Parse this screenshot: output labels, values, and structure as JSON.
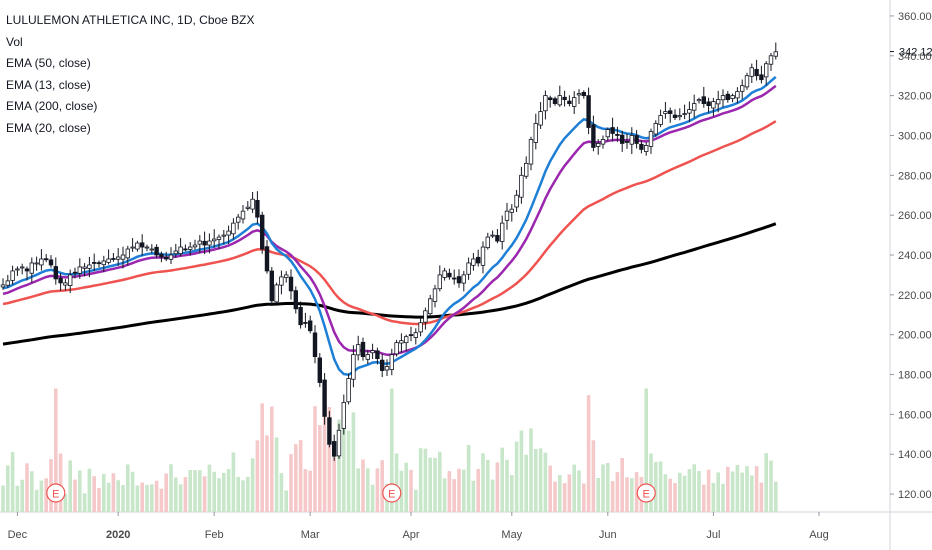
{
  "legend": {
    "title": "LULULEMON ATHLETICA INC, 1D, Cboe BZX",
    "vol": "Vol",
    "ema50": "EMA (50, close)",
    "ema13": "EMA (13, close)",
    "ema200": "EMA (200, close)",
    "ema20": "EMA (20, close)"
  },
  "chart_data": {
    "type": "candlestick",
    "y_ticks": [
      "360.00",
      "340.00",
      "320.00",
      "300.00",
      "280.00",
      "260.00",
      "240.00",
      "220.00",
      "200.00",
      "180.00",
      "160.00",
      "140.00",
      "120.00"
    ],
    "y_tick_values": [
      360,
      340,
      320,
      300,
      280,
      260,
      240,
      220,
      200,
      180,
      160,
      140,
      120
    ],
    "ylim": [
      111,
      368
    ],
    "last_price": "342.12",
    "last_price_value": 342.12,
    "x_labels": [
      {
        "label": "Dec",
        "bar": 3
      },
      {
        "label": "2020",
        "bar": 24
      },
      {
        "label": "Feb",
        "bar": 44
      },
      {
        "label": "Mar",
        "bar": 64
      },
      {
        "label": "Apr",
        "bar": 85
      },
      {
        "label": "May",
        "bar": 106
      },
      {
        "label": "Jun",
        "bar": 126
      },
      {
        "label": "Jul",
        "bar": 148
      },
      {
        "label": "Aug",
        "bar": 170
      }
    ],
    "earnings_marker": "E",
    "earnings_bars": [
      11,
      81,
      134
    ],
    "colors": {
      "up": "#ffffff",
      "down": "#131722",
      "ema13": "#1e7fd6",
      "ema20": "#9b27af",
      "ema50": "#ef5350",
      "ema200": "#000000",
      "vol_up": "#c8e6c9",
      "vol_down": "#f5c9c9",
      "earnings": "#ef5350"
    },
    "closes": [
      225,
      227,
      232,
      233,
      234,
      232,
      236,
      236,
      238,
      238,
      235,
      228,
      226,
      226,
      230,
      231,
      234,
      234,
      235,
      236,
      236,
      237,
      238,
      238,
      239,
      240,
      243,
      244,
      246,
      244,
      244,
      243,
      240,
      239,
      238,
      240,
      242,
      244,
      243,
      244,
      245,
      247,
      245,
      247,
      248,
      249,
      250,
      252,
      256,
      259,
      262,
      264,
      268,
      259,
      243,
      232,
      217,
      225,
      229,
      230,
      222,
      213,
      205,
      206,
      202,
      189,
      176,
      159,
      145,
      139,
      152,
      166,
      178,
      190,
      195,
      189,
      190,
      192,
      188,
      182,
      184,
      190,
      196,
      197,
      199,
      200,
      201,
      206,
      212,
      218,
      223,
      230,
      232,
      229,
      228,
      226,
      230,
      236,
      238,
      236,
      244,
      249,
      250,
      247,
      256,
      262,
      263,
      270,
      280,
      286,
      298,
      306,
      312,
      320,
      318,
      316,
      320,
      318,
      316,
      319,
      321,
      320,
      304,
      294,
      296,
      298,
      303,
      301,
      300,
      296,
      297,
      300,
      296,
      293,
      295,
      302,
      306,
      310,
      312,
      311,
      309,
      310,
      311,
      313,
      316,
      318,
      316,
      315,
      317,
      318,
      320,
      318,
      320,
      322,
      325,
      330,
      334,
      330,
      328,
      336,
      340,
      342
    ]
  }
}
